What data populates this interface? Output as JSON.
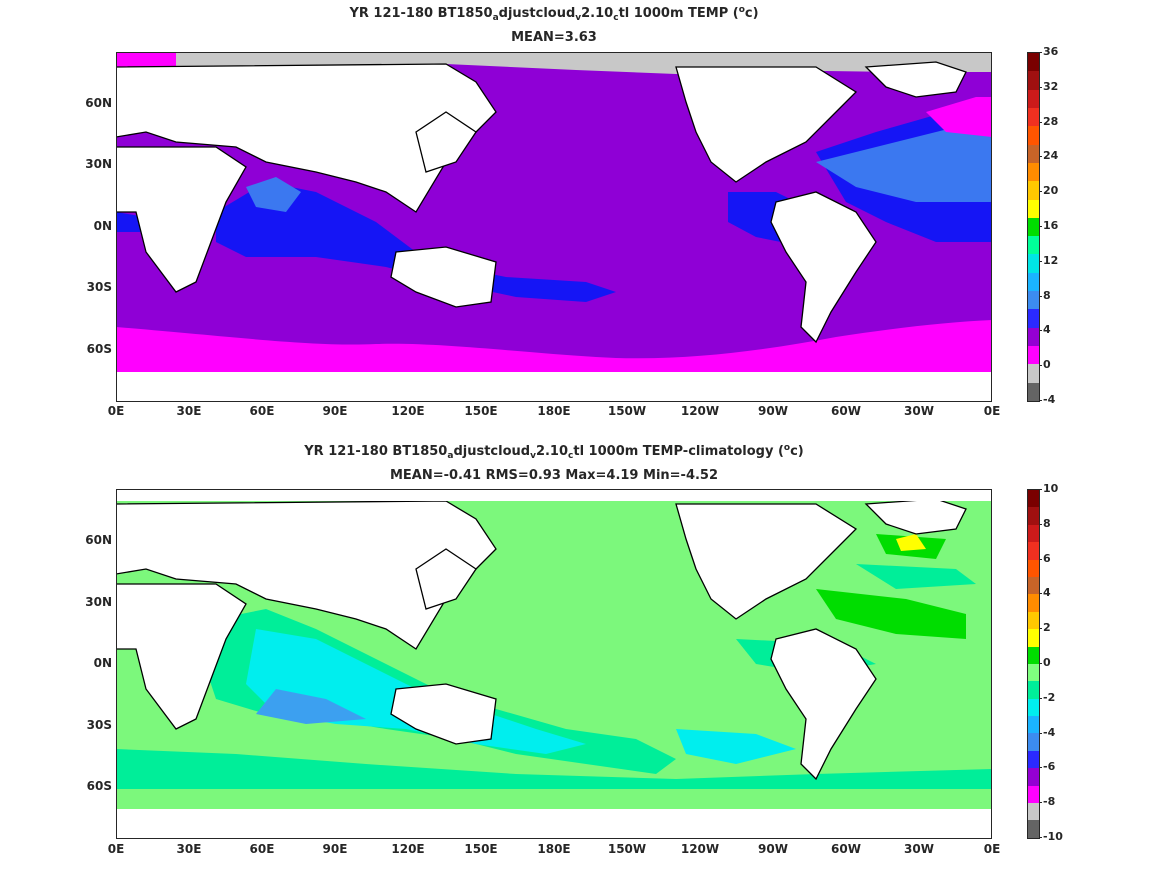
{
  "top": {
    "title": {
      "pre": "YR 121-180 BT1850",
      "sub1": "a",
      "mid1": "djustcloud",
      "sub2": "v",
      "mid2": "2.10",
      "sub3": "c",
      "post": "tl 1000m TEMP (",
      "sup": "o",
      "end": "c)"
    },
    "stats": "MEAN=3.63",
    "y_ticks": [
      "60N",
      "30N",
      "0N",
      "30S",
      "60S"
    ],
    "x_ticks": [
      "0E",
      "30E",
      "60E",
      "90E",
      "120E",
      "150E",
      "180E",
      "150W",
      "120W",
      "90W",
      "60W",
      "30W",
      "0E"
    ],
    "colorbar": {
      "labels": [
        "36",
        "32",
        "28",
        "24",
        "20",
        "16",
        "12",
        "8",
        "4",
        "0",
        "-4"
      ],
      "colors": [
        "#7a0000",
        "#a01010",
        "#cc1a1a",
        "#f03020",
        "#ff5500",
        "#c86428",
        "#ff8c00",
        "#ffc800",
        "#ffff00",
        "#00dd00",
        "#00ff99",
        "#00e5e5",
        "#1ab4ff",
        "#3c8cf0",
        "#2a2aff",
        "#9400d3",
        "#ff00ff",
        "#c8c8c8",
        "#646464"
      ]
    },
    "colors": {
      "ocean_main": "#8f00d6",
      "ocean_south": "#ff00ff",
      "warm_blue": "#3b78f0",
      "deep_blue": "#1515f5",
      "ice": "#c8c8c8",
      "cyan": "#00e5e5"
    }
  },
  "bottom": {
    "title": {
      "pre": "YR 121-180 BT1850",
      "sub1": "a",
      "mid1": "djustcloud",
      "sub2": "v",
      "mid2": "2.10",
      "sub3": "c",
      "post": "tl 1000m TEMP-climatology (",
      "sup": "o",
      "end": "c)"
    },
    "stats": "MEAN=-0.41   RMS=0.93   Max=4.19   Min=-4.52",
    "y_ticks": [
      "60N",
      "30N",
      "0N",
      "30S",
      "60S"
    ],
    "x_ticks": [
      "0E",
      "30E",
      "60E",
      "90E",
      "120E",
      "150E",
      "180E",
      "150W",
      "120W",
      "90W",
      "60W",
      "30W",
      "0E"
    ],
    "colorbar": {
      "labels": [
        "10",
        "8",
        "6",
        "4",
        "2",
        "0",
        "-2",
        "-4",
        "-6",
        "-8",
        "-10"
      ],
      "colors": [
        "#7a0000",
        "#a01010",
        "#cc1a1a",
        "#f03020",
        "#ff5500",
        "#c86428",
        "#ff8c00",
        "#ffc800",
        "#ffff00",
        "#00dd00",
        "#7fff7f",
        "#00ee99",
        "#00eeee",
        "#1ab4ff",
        "#3c8cf0",
        "#2a2aff",
        "#9400d3",
        "#ff00ff",
        "#c8c8c8",
        "#646464"
      ]
    },
    "colors": {
      "neutral": "#7cf87c",
      "neg_small": "#00ee99",
      "neg_mid": "#00eeee",
      "neg_large": "#3ca0f0",
      "pos": "#00dd00",
      "pos_high": "#ffff00"
    }
  }
}
